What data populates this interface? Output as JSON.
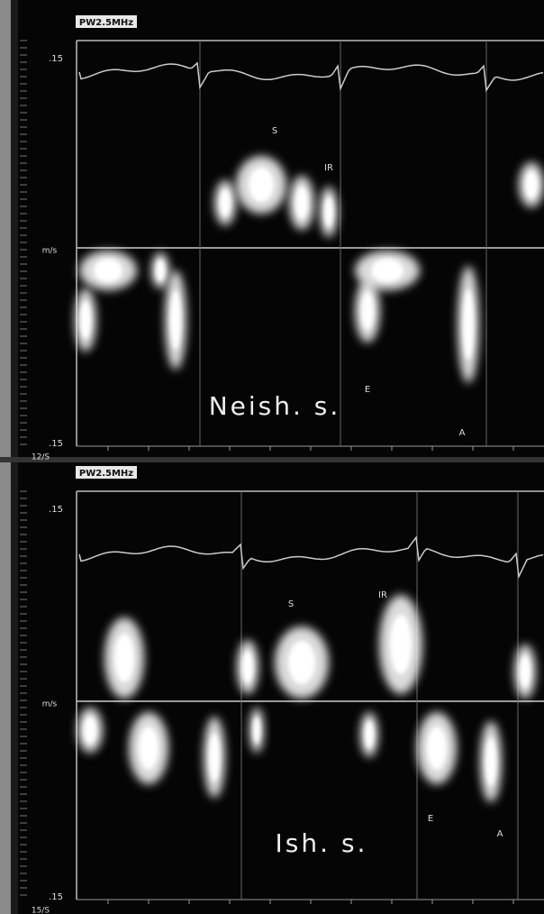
{
  "panels": [
    {
      "probe": "PW2.5MHz",
      "scale_top": ".15",
      "unit": "m/s",
      "scale_bottom": ".15",
      "speed": "12/S",
      "labels": [
        "S",
        "IR",
        "E",
        "A"
      ],
      "caption": "Neish. s."
    },
    {
      "probe": "PW2.5MHz",
      "scale_top": ".15",
      "unit": "m/s",
      "scale_bottom": ".15",
      "speed": "15/S",
      "labels": [
        "S",
        "IR",
        "E",
        "A"
      ],
      "caption": "Ish. s."
    }
  ]
}
